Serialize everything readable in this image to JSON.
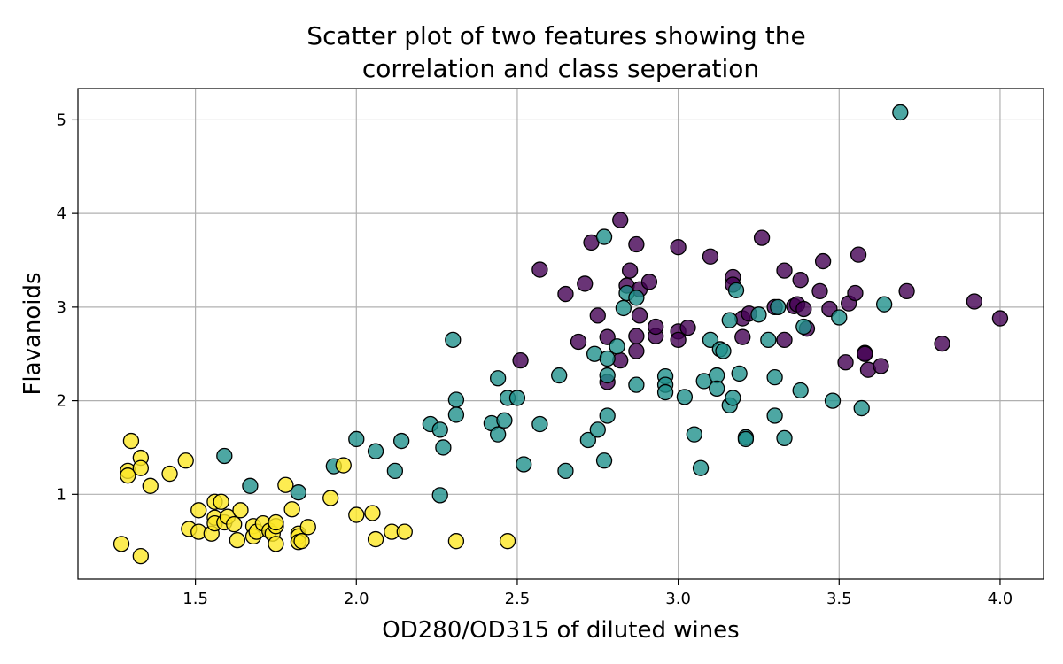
{
  "chart_data": {
    "type": "scatter",
    "title": [
      "Scatter plot of two features showing the",
      "correlation and class seperation"
    ],
    "xlabel": "OD280/OD315 of diluted wines",
    "ylabel": "Flavanoids",
    "xlim": [
      1.135,
      4.135
    ],
    "ylim": [
      0.095,
      5.335
    ],
    "xticks": [
      1.5,
      2.0,
      2.5,
      3.0,
      3.5,
      4.0
    ],
    "xtick_labels": [
      "1.5",
      "2.0",
      "2.5",
      "3.0",
      "3.5",
      "4.0"
    ],
    "yticks": [
      1,
      2,
      3,
      4,
      5
    ],
    "ytick_labels": [
      "1",
      "2",
      "3",
      "4",
      "5"
    ],
    "grid": true,
    "colors": {
      "class_0": "#440154",
      "class_1": "#21918c",
      "class_2": "#fde725",
      "edge": "#000000",
      "grid": "#b0b0b0"
    },
    "series": [
      {
        "class": 0,
        "color": "#440154",
        "points": [
          [
            2.51,
            2.43
          ],
          [
            2.57,
            3.4
          ],
          [
            2.65,
            3.14
          ],
          [
            2.69,
            2.63
          ],
          [
            2.71,
            3.25
          ],
          [
            2.73,
            3.69
          ],
          [
            2.75,
            2.91
          ],
          [
            2.78,
            2.68
          ],
          [
            2.78,
            2.2
          ],
          [
            2.82,
            3.93
          ],
          [
            2.82,
            2.43
          ],
          [
            2.84,
            3.23
          ],
          [
            2.85,
            3.39
          ],
          [
            2.87,
            2.53
          ],
          [
            2.87,
            2.69
          ],
          [
            2.87,
            3.67
          ],
          [
            2.88,
            3.19
          ],
          [
            2.88,
            2.91
          ],
          [
            2.91,
            3.27
          ],
          [
            2.93,
            2.69
          ],
          [
            2.93,
            2.79
          ],
          [
            3.0,
            3.64
          ],
          [
            3.0,
            2.74
          ],
          [
            3.0,
            2.65
          ],
          [
            3.03,
            2.78
          ],
          [
            3.1,
            3.54
          ],
          [
            3.17,
            3.32
          ],
          [
            3.17,
            3.24
          ],
          [
            3.2,
            2.88
          ],
          [
            3.2,
            2.68
          ],
          [
            3.22,
            2.93
          ],
          [
            3.26,
            3.74
          ],
          [
            3.3,
            3.0
          ],
          [
            3.33,
            3.39
          ],
          [
            3.33,
            2.65
          ],
          [
            3.36,
            3.01
          ],
          [
            3.37,
            3.03
          ],
          [
            3.38,
            3.29
          ],
          [
            3.39,
            2.98
          ],
          [
            3.4,
            2.77
          ],
          [
            3.44,
            3.17
          ],
          [
            3.45,
            3.49
          ],
          [
            3.47,
            2.98
          ],
          [
            3.52,
            2.41
          ],
          [
            3.53,
            3.04
          ],
          [
            3.55,
            3.15
          ],
          [
            3.56,
            3.56
          ],
          [
            3.58,
            2.51
          ],
          [
            3.58,
            2.5
          ],
          [
            3.59,
            2.33
          ],
          [
            3.63,
            2.37
          ],
          [
            3.71,
            3.17
          ],
          [
            3.82,
            2.61
          ],
          [
            3.92,
            3.06
          ],
          [
            4.0,
            2.88
          ]
        ]
      },
      {
        "class": 1,
        "color": "#21918c",
        "points": [
          [
            1.59,
            1.41
          ],
          [
            1.67,
            1.09
          ],
          [
            1.82,
            1.02
          ],
          [
            1.93,
            1.3
          ],
          [
            2.0,
            1.59
          ],
          [
            2.06,
            1.46
          ],
          [
            2.12,
            1.25
          ],
          [
            2.14,
            1.57
          ],
          [
            2.23,
            1.75
          ],
          [
            2.26,
            1.69
          ],
          [
            2.26,
            0.99
          ],
          [
            2.27,
            1.5
          ],
          [
            2.3,
            2.65
          ],
          [
            2.31,
            2.01
          ],
          [
            2.31,
            1.85
          ],
          [
            2.42,
            1.76
          ],
          [
            2.44,
            1.64
          ],
          [
            2.44,
            2.24
          ],
          [
            2.46,
            1.79
          ],
          [
            2.47,
            2.03
          ],
          [
            2.5,
            2.03
          ],
          [
            2.52,
            1.32
          ],
          [
            2.57,
            1.75
          ],
          [
            2.63,
            2.27
          ],
          [
            2.65,
            1.25
          ],
          [
            2.72,
            1.58
          ],
          [
            2.74,
            2.5
          ],
          [
            2.75,
            1.69
          ],
          [
            2.77,
            3.75
          ],
          [
            2.77,
            1.36
          ],
          [
            2.78,
            2.27
          ],
          [
            2.78,
            1.84
          ],
          [
            2.78,
            2.45
          ],
          [
            2.81,
            2.58
          ],
          [
            2.83,
            2.99
          ],
          [
            2.84,
            3.15
          ],
          [
            2.87,
            2.17
          ],
          [
            2.87,
            3.1
          ],
          [
            2.96,
            2.26
          ],
          [
            2.96,
            2.17
          ],
          [
            2.96,
            2.09
          ],
          [
            3.02,
            2.04
          ],
          [
            3.05,
            1.64
          ],
          [
            3.07,
            1.28
          ],
          [
            3.08,
            2.21
          ],
          [
            3.1,
            2.65
          ],
          [
            3.12,
            2.27
          ],
          [
            3.12,
            2.13
          ],
          [
            3.13,
            2.55
          ],
          [
            3.14,
            2.53
          ],
          [
            3.16,
            1.95
          ],
          [
            3.16,
            2.86
          ],
          [
            3.17,
            2.03
          ],
          [
            3.18,
            3.18
          ],
          [
            3.19,
            2.29
          ],
          [
            3.21,
            1.61
          ],
          [
            3.21,
            1.59
          ],
          [
            3.25,
            2.92
          ],
          [
            3.28,
            2.65
          ],
          [
            3.3,
            2.25
          ],
          [
            3.3,
            1.84
          ],
          [
            3.31,
            3.0
          ],
          [
            3.33,
            1.6
          ],
          [
            3.38,
            2.11
          ],
          [
            3.39,
            2.79
          ],
          [
            3.48,
            2.0
          ],
          [
            3.5,
            2.89
          ],
          [
            3.57,
            1.92
          ],
          [
            3.64,
            3.03
          ],
          [
            3.69,
            5.08
          ]
        ]
      },
      {
        "class": 2,
        "color": "#fde725",
        "points": [
          [
            1.27,
            0.47
          ],
          [
            1.29,
            1.25
          ],
          [
            1.29,
            1.2
          ],
          [
            1.3,
            1.57
          ],
          [
            1.33,
            1.39
          ],
          [
            1.33,
            1.28
          ],
          [
            1.33,
            0.34
          ],
          [
            1.36,
            1.09
          ],
          [
            1.42,
            1.22
          ],
          [
            1.47,
            1.36
          ],
          [
            1.48,
            0.63
          ],
          [
            1.51,
            0.83
          ],
          [
            1.51,
            0.6
          ],
          [
            1.55,
            0.58
          ],
          [
            1.56,
            0.92
          ],
          [
            1.56,
            0.75
          ],
          [
            1.56,
            0.69
          ],
          [
            1.58,
            0.92
          ],
          [
            1.59,
            0.7
          ],
          [
            1.6,
            0.76
          ],
          [
            1.62,
            0.68
          ],
          [
            1.63,
            0.51
          ],
          [
            1.64,
            0.83
          ],
          [
            1.68,
            0.66
          ],
          [
            1.68,
            0.55
          ],
          [
            1.69,
            0.6
          ],
          [
            1.71,
            0.69
          ],
          [
            1.73,
            0.61
          ],
          [
            1.74,
            0.58
          ],
          [
            1.75,
            0.66
          ],
          [
            1.75,
            0.7
          ],
          [
            1.75,
            0.47
          ],
          [
            1.78,
            1.1
          ],
          [
            1.8,
            0.84
          ],
          [
            1.82,
            0.58
          ],
          [
            1.82,
            0.55
          ],
          [
            1.82,
            0.49
          ],
          [
            1.83,
            0.5
          ],
          [
            1.85,
            0.65
          ],
          [
            1.92,
            0.96
          ],
          [
            1.96,
            1.31
          ],
          [
            2.0,
            0.78
          ],
          [
            2.05,
            0.8
          ],
          [
            2.06,
            0.52
          ],
          [
            2.11,
            0.6
          ],
          [
            2.15,
            0.6
          ],
          [
            2.31,
            0.5
          ],
          [
            2.47,
            0.5
          ]
        ]
      }
    ]
  }
}
